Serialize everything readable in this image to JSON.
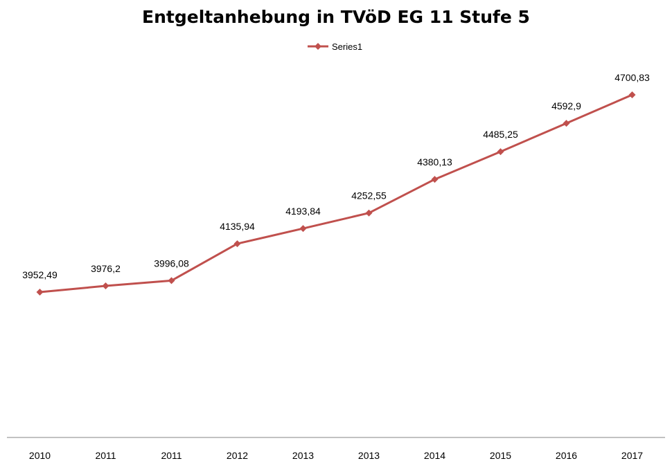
{
  "chart_data": {
    "type": "line",
    "title": "Entgeltanhebung in TVöD EG 11 Stufe 5",
    "categories": [
      "2010",
      "2011",
      "2011",
      "2012",
      "2013",
      "2013",
      "2014",
      "2015",
      "2016",
      "2017"
    ],
    "series": [
      {
        "name": "Series1",
        "values": [
          3952.49,
          3976.2,
          3996.08,
          4135.94,
          4193.84,
          4252.55,
          4380.13,
          4485.25,
          4592.9,
          4700.83
        ],
        "labels": [
          "3952,49",
          "3976,2",
          "3996,08",
          "4135,94",
          "4193,84",
          "4252,55",
          "4380,13",
          "4485,25",
          "4592,9",
          "4700,83"
        ],
        "color": "#c0504d",
        "marker": "diamond"
      }
    ],
    "xlabel": "",
    "ylabel": "",
    "ylim": [
      3400,
      4800
    ],
    "grid": false,
    "legend": "top",
    "axis_color": "#868686"
  }
}
